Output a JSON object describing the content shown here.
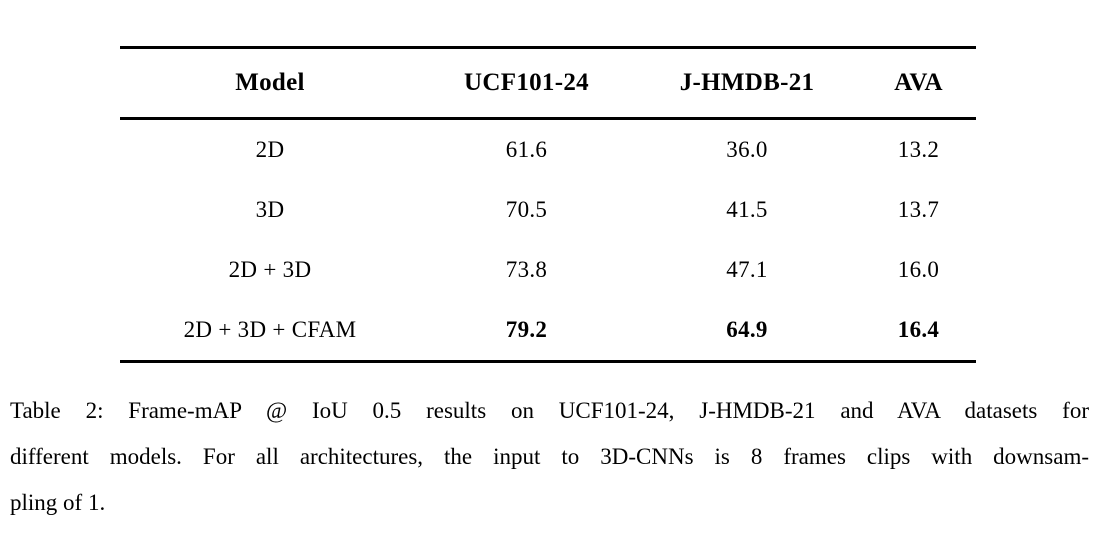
{
  "table": {
    "headers": {
      "model": "Model",
      "ucf101_24": "UCF101-24",
      "jhmdb_21": "J-HMDB-21",
      "ava": "AVA"
    },
    "rows": [
      {
        "model": "2D",
        "ucf101_24": "61.6",
        "jhmdb_21": "36.0",
        "ava": "13.2"
      },
      {
        "model": "3D",
        "ucf101_24": "70.5",
        "jhmdb_21": "41.5",
        "ava": "13.7"
      },
      {
        "model": "2D + 3D",
        "ucf101_24": "73.8",
        "jhmdb_21": "47.1",
        "ava": "16.0"
      },
      {
        "model": "2D + 3D + CFAM",
        "ucf101_24": "79.2",
        "jhmdb_21": "64.9",
        "ava": "16.4"
      }
    ]
  },
  "caption": {
    "lines": [
      "Table 2: Frame-mAP @ IoU 0.5 results on UCF101-24, J-HMDB-21 and AVA datasets for",
      "different models. For all architectures, the input to 3D-CNNs is 8 frames clips with downsam-",
      "pling of 1."
    ]
  },
  "colors": {
    "text": "#000000",
    "background": "#ffffff",
    "rule": "#000000"
  }
}
